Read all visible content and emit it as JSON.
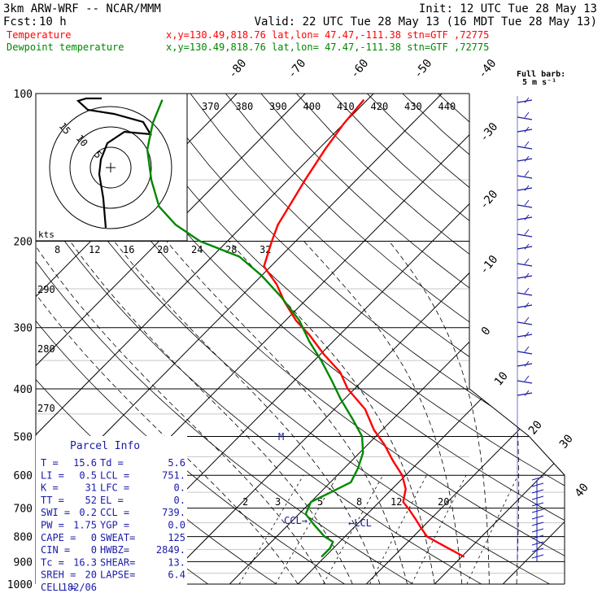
{
  "header": {
    "model": "3km ARW-WRF -- NCAR/MMM",
    "init": "Init: 12 UTC Tue 28 May 13",
    "fcst_label": "Fcst:",
    "fcst_value": "10 h",
    "valid": "Valid: 22 UTC Tue 28 May 13 (16 MDT Tue 28 May 13)",
    "temperature_label": "Temperature",
    "dewpoint_label": "Dewpoint temperature",
    "temperature_loc": "x,y=130.49,818.76   lat,lon= 47.47,-111.38  stn=GTF ,72775",
    "dewpoint_loc": "x,y=130.49,818.76   lat,lon= 47.47,-111.38  stn=GTF ,72775"
  },
  "colors": {
    "temperature": "#ff0000",
    "dewpoint": "#008800",
    "parcel_text": "#1a1aa8",
    "wind_barbs": "#1a1aa8",
    "hodograph": "#000000"
  },
  "chart_data": {
    "type": "skew-t log-p sounding",
    "pressure_axis": {
      "labels": [
        "100",
        "200",
        "300",
        "400",
        "500",
        "600",
        "700",
        "800",
        "900",
        "1000"
      ],
      "values": [
        100,
        200,
        300,
        400,
        500,
        600,
        700,
        800,
        900,
        1000
      ],
      "scale": "log",
      "range": [
        100,
        1000
      ]
    },
    "isotherm_labels": [
      "-80",
      "-70",
      "-60",
      "-50",
      "-40",
      "-30",
      "-20",
      "-10",
      "0",
      "10",
      "20",
      "30",
      "40"
    ],
    "theta_e_labels": [
      "370",
      "380",
      "390",
      "400",
      "410",
      "420",
      "430",
      "440"
    ],
    "upper_axis_labels": [
      "8",
      "12",
      "16",
      "20",
      "24",
      "28",
      "32"
    ],
    "theta_labels": [
      "290",
      "280",
      "270"
    ],
    "mixing_ratio_labels": [
      "2",
      "3",
      "5",
      "8",
      "12",
      "20"
    ],
    "temperature": {
      "pressure": [
        880,
        845,
        800,
        770,
        740,
        705,
        680,
        640,
        600,
        560,
        520,
        485,
        440,
        400,
        370,
        340,
        310,
        290,
        265,
        245,
        225,
        200,
        185,
        170,
        150,
        130,
        115,
        103
      ],
      "value": [
        20.4,
        16.8,
        12.0,
        10.0,
        8.0,
        5.5,
        3.5,
        2.0,
        -0.5,
        -4.0,
        -7.5,
        -11.2,
        -15.5,
        -21.0,
        -24.5,
        -29.5,
        -34.5,
        -38.5,
        -43.0,
        -46.5,
        -51.0,
        -53.5,
        -55.0,
        -56.0,
        -57.5,
        -59.0,
        -60.0,
        -60.5
      ]
    },
    "dewpoint": {
      "pressure": [
        880,
        845,
        820,
        800,
        760,
        720,
        680,
        650,
        620,
        580,
        540,
        500,
        460,
        420,
        385,
        350,
        320,
        290,
        260,
        235,
        215,
        200,
        185,
        170,
        150,
        130,
        115,
        103
      ],
      "value": [
        -0.5,
        -0.5,
        -1.0,
        -3.0,
        -6.0,
        -9.0,
        -10.0,
        -8.5,
        -7.0,
        -8.0,
        -9.5,
        -12.0,
        -16.0,
        -20.5,
        -24.5,
        -29.0,
        -33.5,
        -38.0,
        -44.0,
        -50.0,
        -56.0,
        -64.0,
        -70.0,
        -75.0,
        -80.0,
        -85.0,
        -88.0,
        -90.0
      ]
    },
    "point_labels": {
      "ccl": "CCL",
      "lcl": "LCL"
    },
    "wind_barb_key": {
      "title": "Full barb:",
      "value": "5 m s⁻¹"
    },
    "hodograph": {
      "rings": [
        "5",
        "10",
        "15"
      ],
      "units": "kts"
    }
  },
  "parcel_info": {
    "title": "Parcel Info",
    "rows": [
      [
        "T  =",
        "15.6",
        "Td =",
        "5.6"
      ],
      [
        "LI =",
        "0.5",
        "LCL =",
        "751."
      ],
      [
        "K  =",
        "31",
        "LFC =",
        "0."
      ],
      [
        "TT =",
        "52",
        "EL  =",
        "0."
      ],
      [
        "SWI =",
        "0.2",
        "CCL =",
        "739."
      ],
      [
        "PW =",
        "1.75",
        "YGP =",
        "0.0"
      ],
      [
        "CAPE =",
        "0",
        "SWEAT=",
        "125"
      ],
      [
        "CIN =",
        "0",
        "HWBZ=",
        "2849."
      ],
      [
        "Tc =",
        "16.3",
        "SHEAR=",
        "13."
      ],
      [
        "SREH =",
        "20",
        "LAPSE=",
        "6.4"
      ],
      [
        "CELL =",
        "182/06",
        "",
        ""
      ]
    ]
  }
}
